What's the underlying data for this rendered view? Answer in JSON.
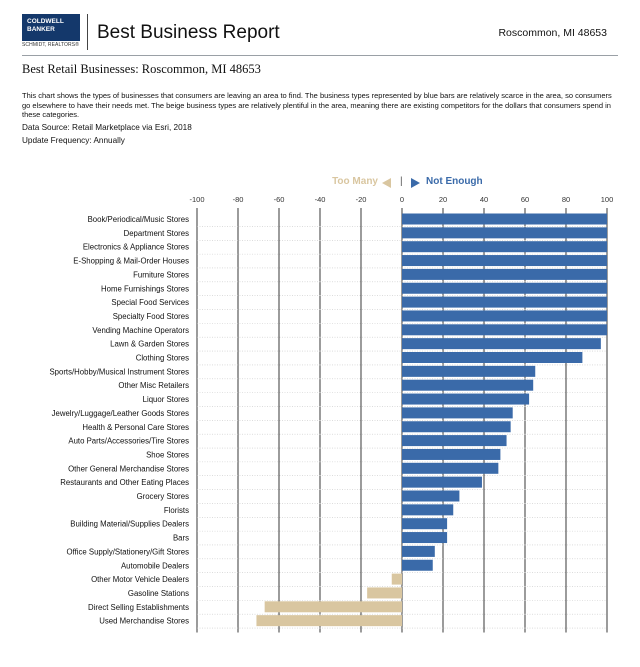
{
  "header": {
    "logo_line1": "COLDWELL",
    "logo_line2": "BANKER",
    "logo_sub": "SCHMIDT, REALTORS®",
    "report_title": "Best Business Report",
    "location": "Roscommon, MI 48653"
  },
  "subtitle": "Best Retail Businesses: Roscommon, MI 48653",
  "description": "This chart shows the types of businesses that consumers are leaving an area to find. The business types represented by blue bars are relatively scarce in the area, so consumers go elsewhere to have their needs met. The beige business types are relatively plentiful in the area, meaning there are existing competitors for the dollars that consumers spend in these categories.",
  "data_source": "Data Source: Retail Marketplace via Esri, 2018",
  "update_frequency": "Update Frequency: Annually",
  "legend": {
    "too_many": "Too Many",
    "separator": "|",
    "not_enough": "Not Enough"
  },
  "colors": {
    "positive": "#3a6aa9",
    "negative": "#d9c6a0",
    "gridline": "#222222"
  },
  "chart_data": {
    "type": "bar",
    "orientation": "horizontal",
    "xlim": [
      -100,
      100
    ],
    "ticks": [
      -100,
      -80,
      -60,
      -40,
      -20,
      0,
      20,
      40,
      60,
      80,
      100
    ],
    "categories": [
      "Book/Periodical/Music Stores",
      "Department Stores",
      "Electronics & Appliance Stores",
      "E-Shopping & Mail-Order Houses",
      "Furniture Stores",
      "Home Furnishings Stores",
      "Special Food Services",
      "Specialty Food Stores",
      "Vending Machine Operators",
      "Lawn & Garden Stores",
      "Clothing Stores",
      "Sports/Hobby/Musical Instrument Stores",
      "Other Misc Retailers",
      "Liquor Stores",
      "Jewelry/Luggage/Leather Goods Stores",
      "Health & Personal Care Stores",
      "Auto Parts/Accessories/Tire Stores",
      "Shoe Stores",
      "Other General Merchandise Stores",
      "Restaurants and Other Eating Places",
      "Grocery Stores",
      "Florists",
      "Building Material/Supplies Dealers",
      "Bars",
      "Office Supply/Stationery/Gift Stores",
      "Automobile Dealers",
      "Other Motor Vehicle Dealers",
      "Gasoline Stations",
      "Direct Selling Establishments",
      "Used Merchandise Stores"
    ],
    "values": [
      100,
      100,
      100,
      100,
      100,
      100,
      100,
      100,
      100,
      97,
      88,
      65,
      64,
      62,
      54,
      53,
      51,
      48,
      47,
      39,
      28,
      25,
      22,
      22,
      16,
      15,
      -5,
      -17,
      -67,
      -71
    ]
  }
}
